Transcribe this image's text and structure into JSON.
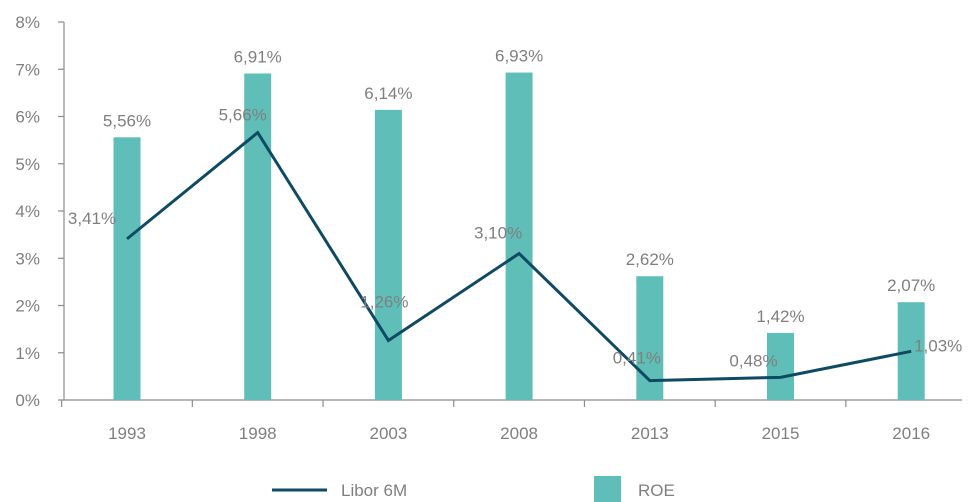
{
  "chart_data": {
    "type": "bar",
    "categories": [
      "1993",
      "1998",
      "2003",
      "2008",
      "2013",
      "2015",
      "2016"
    ],
    "ylim": [
      0,
      8
    ],
    "yticks": [
      "0%",
      "1%",
      "2%",
      "3%",
      "4%",
      "5%",
      "6%",
      "7%",
      "8%"
    ],
    "series": [
      {
        "name": "ROE",
        "kind": "bar",
        "color": "#5fbfb8",
        "values": [
          5.56,
          6.91,
          6.14,
          6.93,
          2.62,
          1.42,
          2.07
        ],
        "labels": [
          "5,56%",
          "6,91%",
          "6,14%",
          "6,93%",
          "2,62%",
          "1,42%",
          "2,07%"
        ]
      },
      {
        "name": "Libor 6M",
        "kind": "line",
        "color": "#0f4a63",
        "values": [
          3.41,
          5.66,
          1.26,
          3.1,
          0.41,
          0.48,
          1.03
        ],
        "labels": [
          "3,41%",
          "5,66%",
          "1,26%",
          "3,10%",
          "0,41%",
          "0,48%",
          "1,03%"
        ]
      }
    ],
    "grid": false,
    "legend": "bottom",
    "title": "",
    "xlabel": "",
    "ylabel": ""
  }
}
